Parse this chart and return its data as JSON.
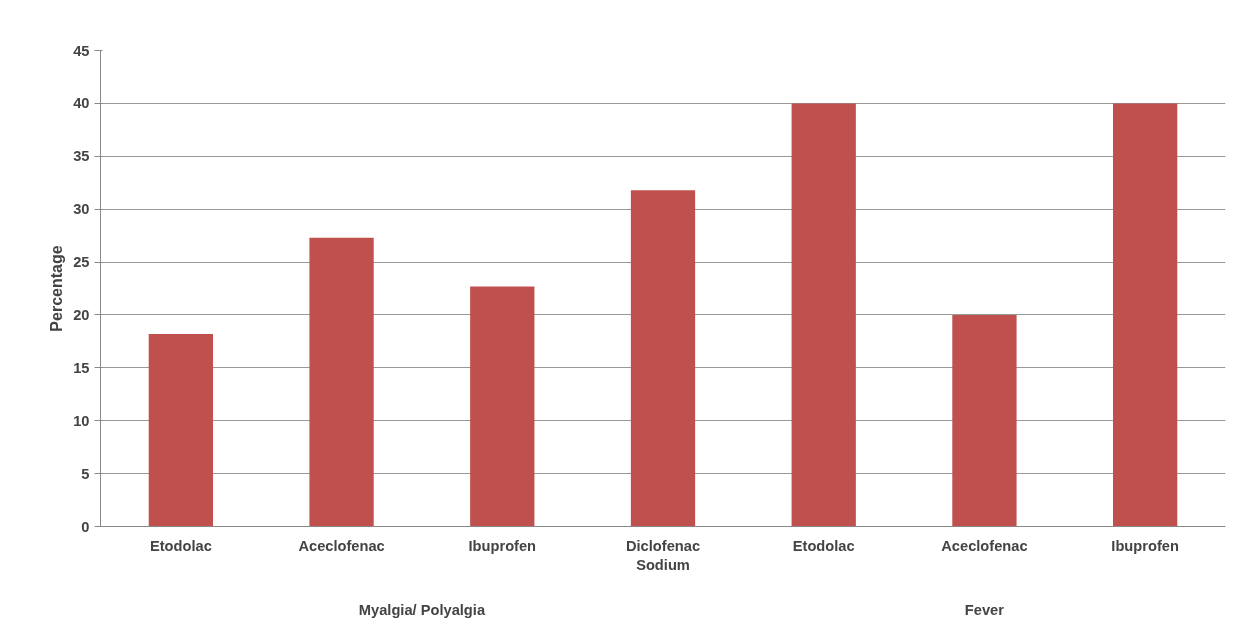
{
  "chart_data": {
    "type": "bar",
    "ylabel": "Percentage",
    "categories": [
      "Etodolac",
      "Aceclofenac",
      "Ibuprofen",
      "Diclofenac Sodium",
      "Etodolac",
      "Aceclofenac",
      "Ibuprofen"
    ],
    "values": [
      18.2,
      27.3,
      22.7,
      31.8,
      40,
      20,
      40
    ],
    "color": "#c0504d",
    "ylim": [
      0,
      45
    ],
    "yticks": [
      0,
      5,
      10,
      15,
      20,
      25,
      30,
      35,
      40,
      45
    ],
    "grid": "y",
    "annotations": [
      "Myalgia/ Polyalgia",
      "Fever"
    ]
  }
}
